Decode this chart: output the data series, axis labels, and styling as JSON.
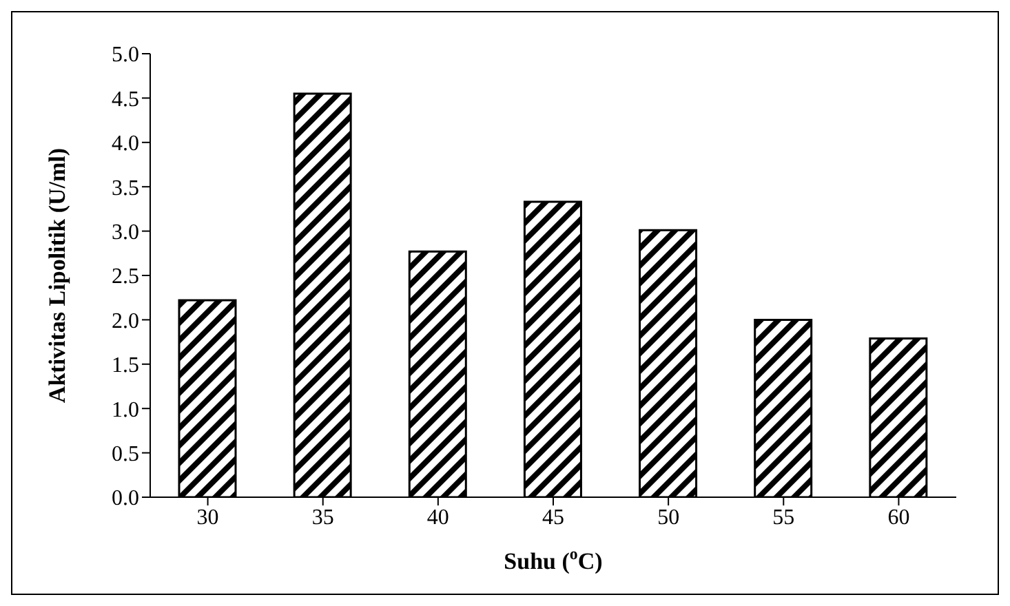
{
  "chart_data": {
    "type": "bar",
    "xlabel": "Suhu ($^{o}$C)",
    "ylabel": "Aktivitas Lipolitik (U/ml)",
    "categories": [
      "30",
      "35",
      "40",
      "45",
      "50",
      "55",
      "60"
    ],
    "values": [
      2.22,
      4.55,
      2.77,
      3.33,
      3.01,
      2.0,
      1.79
    ],
    "color": "#000000",
    "ylim": [
      0,
      5
    ],
    "yticks": [
      {
        "value": 0,
        "label": "0.0"
      },
      {
        "value": 0.5,
        "label": "0.5"
      },
      {
        "value": 1,
        "label": "1.0"
      },
      {
        "value": 1.5,
        "label": "1.5"
      },
      {
        "value": 2,
        "label": "2.0"
      },
      {
        "value": 2.5,
        "label": "2.5"
      },
      {
        "value": 3,
        "label": "3.0"
      },
      {
        "value": 3.5,
        "label": "3.5"
      },
      {
        "value": 4,
        "label": "4.0"
      },
      {
        "value": 4.5,
        "label": "4.5"
      },
      {
        "value": 5,
        "label": "5.0"
      }
    ],
    "grid": false,
    "legend": false
  }
}
